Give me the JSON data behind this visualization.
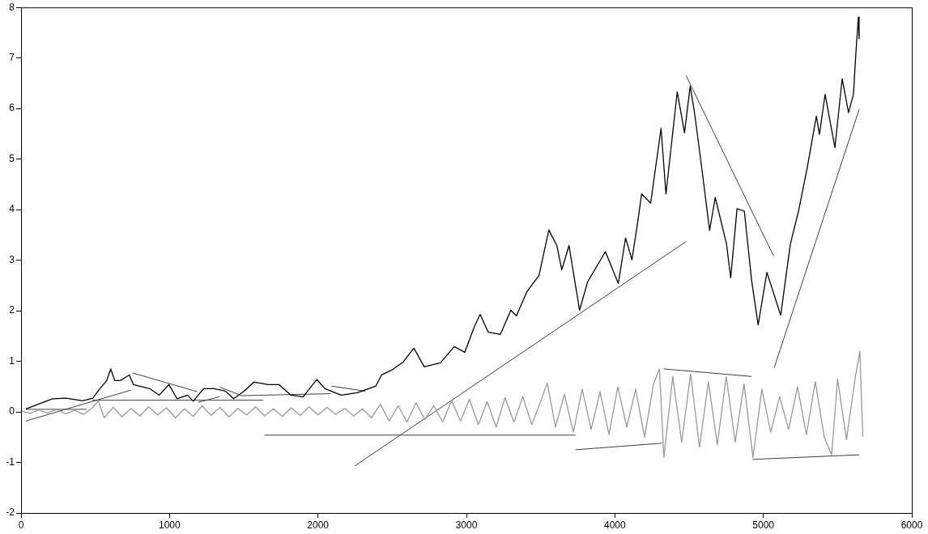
{
  "chart_data": {
    "type": "line",
    "xlim": [
      0,
      6000
    ],
    "ylim": [
      -2,
      8
    ],
    "xticks": [
      0,
      1000,
      2000,
      3000,
      4000,
      5000,
      6000
    ],
    "yticks": [
      -2,
      -1,
      0,
      1,
      2,
      3,
      4,
      5,
      6,
      7,
      8
    ],
    "marker": "none",
    "legend": false,
    "series": [
      {
        "type": "line",
        "color": "#000000",
        "x": [
          33,
          212,
          305,
          414,
          484,
          523,
          577,
          604,
          631,
          670,
          729,
          757,
          866,
          931,
          996,
          1051,
          1121,
          1160,
          1230,
          1301,
          1377,
          1432,
          1502,
          1568,
          1666,
          1737,
          1818,
          1900,
          1992,
          2047,
          2156,
          2265,
          2390,
          2428,
          2499,
          2575,
          2646,
          2716,
          2825,
          2918,
          2989,
          3054,
          3092,
          3146,
          3228,
          3299,
          3337,
          3408,
          3489,
          3555,
          3609,
          3642,
          3691,
          3762,
          3816,
          3936,
          4023,
          4072,
          4115,
          4154,
          4180,
          4241,
          4311,
          4344,
          4420,
          4469,
          4507,
          4535,
          4584,
          4638,
          4676,
          4752,
          4780,
          4823,
          4872,
          4921,
          4965,
          5024,
          5117,
          5182,
          5237,
          5297,
          5324,
          5357,
          5378,
          5416,
          5482,
          5531,
          5574,
          5607,
          5623,
          5640,
          5645
        ],
        "values": [
          0.06,
          0.26,
          0.27,
          0.22,
          0.27,
          0.43,
          0.62,
          0.85,
          0.62,
          0.62,
          0.73,
          0.54,
          0.46,
          0.33,
          0.54,
          0.26,
          0.33,
          0.21,
          0.46,
          0.46,
          0.41,
          0.26,
          0.41,
          0.59,
          0.54,
          0.54,
          0.33,
          0.3,
          0.64,
          0.46,
          0.33,
          0.38,
          0.51,
          0.73,
          0.83,
          0.99,
          1.26,
          0.89,
          0.97,
          1.29,
          1.18,
          1.69,
          1.93,
          1.58,
          1.53,
          2.01,
          1.9,
          2.38,
          2.7,
          3.6,
          3.29,
          2.81,
          3.29,
          2.01,
          2.57,
          3.17,
          2.54,
          3.44,
          3.01,
          3.76,
          4.31,
          4.13,
          5.61,
          4.31,
          6.33,
          5.52,
          6.44,
          5.95,
          4.85,
          3.59,
          4.24,
          3.32,
          2.65,
          4.02,
          3.97,
          2.6,
          1.72,
          2.76,
          1.91,
          3.32,
          3.97,
          4.85,
          5.3,
          5.85,
          5.49,
          6.28,
          5.23,
          6.59,
          5.92,
          6.28,
          7.08,
          7.81,
          7.38
        ]
      },
      {
        "type": "line",
        "color": "#999999",
        "x": [
          0,
          60,
          120,
          180,
          240,
          300,
          360,
          420,
          480,
          520,
          560,
          620,
          680,
          740,
          800,
          860,
          920,
          980,
          1040,
          1100,
          1160,
          1220,
          1280,
          1340,
          1400,
          1460,
          1520,
          1580,
          1640,
          1700,
          1760,
          1820,
          1880,
          1940,
          2000,
          2060,
          2120,
          2180,
          2240,
          2300,
          2360,
          2420,
          2480,
          2540,
          2600,
          2660,
          2720,
          2780,
          2840,
          2900,
          2960,
          3020,
          3080,
          3140,
          3200,
          3260,
          3320,
          3380,
          3440,
          3500,
          3544,
          3600,
          3660,
          3720,
          3780,
          3840,
          3900,
          3960,
          4020,
          4080,
          4140,
          4200,
          4260,
          4300,
          4330,
          4390,
          4450,
          4510,
          4570,
          4630,
          4690,
          4750,
          4810,
          4870,
          4930,
          4990,
          5050,
          5110,
          5170,
          5230,
          5290,
          5350,
          5410,
          5460,
          5500,
          5560,
          5620,
          5650,
          5670
        ],
        "values": [
          0.02,
          -0.03,
          0.04,
          -0.02,
          0.05,
          -0.04,
          0.03,
          -0.05,
          0.08,
          0.22,
          -0.12,
          0.09,
          -0.1,
          0.07,
          -0.08,
          0.1,
          -0.06,
          0.08,
          -0.12,
          0.06,
          -0.09,
          0.12,
          -0.07,
          0.09,
          -0.1,
          0.07,
          -0.06,
          0.1,
          -0.08,
          0.06,
          -0.09,
          0.08,
          -0.07,
          0.1,
          -0.06,
          0.09,
          -0.05,
          0.07,
          -0.08,
          0.06,
          -0.12,
          0.15,
          -0.18,
          0.12,
          -0.2,
          0.18,
          -0.15,
          0.12,
          -0.2,
          0.22,
          -0.18,
          0.25,
          -0.25,
          0.2,
          -0.3,
          0.28,
          -0.2,
          0.3,
          -0.25,
          0.2,
          0.57,
          -0.3,
          0.35,
          -0.4,
          0.45,
          -0.35,
          0.4,
          -0.45,
          0.5,
          -0.3,
          0.45,
          -0.5,
          0.55,
          0.85,
          -0.9,
          0.7,
          -0.6,
          0.75,
          -0.7,
          0.6,
          -0.65,
          0.7,
          -0.6,
          0.55,
          -0.9,
          0.45,
          -0.4,
          0.3,
          -0.35,
          0.5,
          -0.45,
          0.6,
          -0.5,
          -0.85,
          0.65,
          -0.55,
          0.7,
          1.2,
          -0.5
        ]
      },
      {
        "type": "line",
        "color": "#404040",
        "x": [
          33,
          740
        ],
        "values": [
          -0.18,
          0.43
        ]
      },
      {
        "type": "line",
        "color": "#404040",
        "x": [
          33,
          441
        ],
        "values": [
          0.05,
          0.05
        ]
      },
      {
        "type": "line",
        "color": "#404040",
        "x": [
          480,
          1630
        ],
        "values": [
          0.23,
          0.23
        ]
      },
      {
        "type": "line",
        "color": "#404040",
        "x": [
          751,
          1187
        ],
        "values": [
          0.77,
          0.4
        ]
      },
      {
        "type": "line",
        "color": "#404040",
        "x": [
          1192,
          1339
        ],
        "values": [
          0.19,
          0.3
        ]
      },
      {
        "type": "line",
        "color": "#404040",
        "x": [
          1339,
          1486,
          2085
        ],
        "values": [
          0.49,
          0.32,
          0.36
        ]
      },
      {
        "type": "line",
        "color": "#404040",
        "x": [
          2090,
          2319
        ],
        "values": [
          0.51,
          0.41
        ]
      },
      {
        "type": "line",
        "color": "#404040",
        "x": [
          1639,
          3734
        ],
        "values": [
          -0.46,
          -0.46
        ]
      },
      {
        "type": "line",
        "color": "#404040",
        "x": [
          2248,
          4480
        ],
        "values": [
          -1.07,
          3.37
        ]
      },
      {
        "type": "line",
        "color": "#404040",
        "x": [
          3734,
          4317
        ],
        "values": [
          -0.75,
          -0.62
        ]
      },
      {
        "type": "line",
        "color": "#404040",
        "x": [
          4328,
          4921
        ],
        "values": [
          0.85,
          0.7
        ]
      },
      {
        "type": "line",
        "color": "#404040",
        "x": [
          4480,
          5068
        ],
        "values": [
          6.65,
          3.09
        ]
      },
      {
        "type": "line",
        "color": "#404040",
        "x": [
          4927,
          5645
        ],
        "values": [
          -0.94,
          -0.85
        ]
      },
      {
        "type": "line",
        "color": "#404040",
        "x": [
          5074,
          5645
        ],
        "values": [
          0.88,
          5.98
        ]
      }
    ]
  }
}
